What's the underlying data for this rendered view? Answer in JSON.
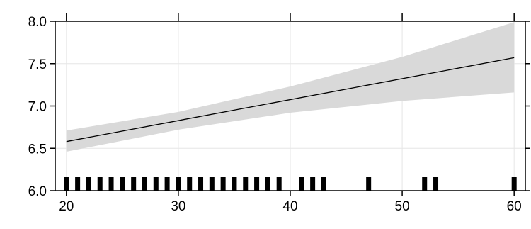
{
  "chart_data": {
    "type": "line",
    "title": "",
    "xlabel": "",
    "ylabel": "",
    "xlim": [
      19,
      61
    ],
    "ylim": [
      6.0,
      8.0
    ],
    "x_ticks": [
      20,
      30,
      40,
      50,
      60
    ],
    "x_tick_labels": [
      "20",
      "30",
      "40",
      "50",
      "60"
    ],
    "y_ticks": [
      6.0,
      6.5,
      7.0,
      7.5,
      8.0
    ],
    "y_tick_labels": [
      "6.0",
      "6.5",
      "7.0",
      "7.5",
      "8.0"
    ],
    "grid": true,
    "fit_line": {
      "x": [
        20,
        60
      ],
      "y": [
        6.58,
        7.57
      ]
    },
    "confidence_band": {
      "x": [
        20,
        30,
        40,
        50,
        60
      ],
      "upper": [
        6.71,
        6.93,
        7.23,
        7.58,
        7.99
      ],
      "lower": [
        6.46,
        6.72,
        6.92,
        7.06,
        7.16
      ]
    },
    "rug": [
      20,
      21,
      22,
      23,
      24,
      25,
      26,
      27,
      28,
      29,
      30,
      31,
      32,
      33,
      34,
      35,
      36,
      37,
      38,
      39,
      41,
      42,
      43,
      47,
      52,
      53,
      60
    ],
    "colors": {
      "band": "#d9d9d9",
      "line": "#000000",
      "grid": "#e6e6e6",
      "rug": "#000000"
    }
  }
}
